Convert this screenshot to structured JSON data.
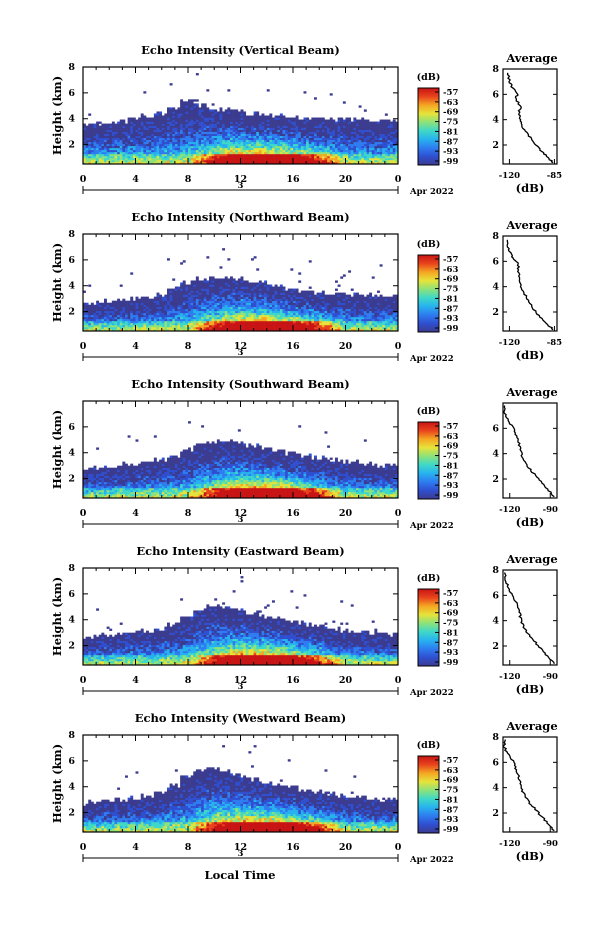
{
  "colors": {
    "colormap": [
      "#3b3b8f",
      "#2f4fd0",
      "#2e7cf0",
      "#27b2ee",
      "#3fd8c8",
      "#8de27a",
      "#e6e33a",
      "#f5a623",
      "#e8431c",
      "#c81414"
    ],
    "axis": "#000000"
  },
  "common": {
    "xlabel": "Local Time",
    "date_label": "Apr 2022",
    "day_label": "3",
    "colorbar_unit": "(dB)",
    "colorbar_ticks": [
      "-57",
      "-63",
      "-69",
      "-75",
      "-81",
      "-87",
      "-93",
      "-99"
    ],
    "avg_title": "Average",
    "avg_xlabel": "(dB)"
  },
  "chart_data": [
    {
      "type": "heatmap",
      "title": "Echo Intensity (Vertical Beam)",
      "ylabel": "Height (km)",
      "x_ticks": [
        "0",
        "4",
        "8",
        "12",
        "16",
        "20",
        "0"
      ],
      "y_ticks": [
        "8",
        "6",
        "4",
        "2"
      ],
      "xlim": [
        0,
        24
      ],
      "ylim": [
        0.5,
        8
      ],
      "echo_top_km": [
        3.6,
        3.6,
        3.7,
        3.8,
        4.0,
        4.2,
        4.5,
        4.9,
        5.4,
        5.1,
        4.7,
        4.7,
        4.6,
        4.4,
        4.3,
        4.2,
        4.1,
        4.1,
        4.0,
        4.0,
        4.0,
        4.0,
        3.9,
        3.9,
        3.8
      ],
      "avg_profile": {
        "title": "Average",
        "xlabel": "(dB)",
        "x_ticks": [
          "-120",
          "-85"
        ],
        "y_ticks": [
          "8",
          "6",
          "4",
          "2"
        ],
        "xlim": [
          -125,
          -83
        ],
        "ylim": [
          0.5,
          8
        ],
        "height_km": [
          7.7,
          7.0,
          6.6,
          6.0,
          5.6,
          5.0,
          4.5,
          4.0,
          3.5,
          3.0,
          2.5,
          2.0,
          1.5,
          1.0,
          0.6
        ],
        "db": [
          -121,
          -120,
          -118,
          -114,
          -115,
          -111,
          -113,
          -111,
          -110,
          -107,
          -103,
          -99,
          -95,
          -90,
          -86
        ]
      }
    },
    {
      "type": "heatmap",
      "title": "Echo Intensity (Northward Beam)",
      "ylabel": "Height (km)",
      "x_ticks": [
        "0",
        "4",
        "8",
        "12",
        "16",
        "20",
        "0"
      ],
      "y_ticks": [
        "8",
        "6",
        "4",
        "2"
      ],
      "xlim": [
        0,
        24
      ],
      "ylim": [
        0.5,
        8
      ],
      "echo_top_km": [
        2.6,
        2.7,
        2.8,
        2.9,
        3.0,
        3.1,
        3.3,
        3.8,
        4.3,
        4.5,
        4.6,
        4.7,
        4.6,
        4.3,
        4.2,
        4.0,
        3.8,
        3.6,
        3.5,
        3.4,
        3.4,
        3.3,
        3.3,
        3.2,
        3.2
      ],
      "avg_profile": {
        "title": "Average",
        "xlabel": "(dB)",
        "x_ticks": [
          "-120",
          "-85"
        ],
        "y_ticks": [
          "8",
          "6",
          "4",
          "2"
        ],
        "xlim": [
          -125,
          -83
        ],
        "ylim": [
          0.5,
          8
        ],
        "height_km": [
          7.7,
          7.0,
          6.6,
          6.2,
          5.8,
          5.2,
          4.6,
          4.0,
          3.4,
          2.8,
          2.2,
          1.6,
          1.0,
          0.6
        ],
        "db": [
          -121,
          -121,
          -119,
          -117,
          -113,
          -113,
          -112,
          -111,
          -108,
          -105,
          -101,
          -96,
          -90,
          -86
        ]
      }
    },
    {
      "type": "heatmap",
      "title": "Echo Intensity (Southward Beam)",
      "ylabel": "Height (km)",
      "x_ticks": [
        "0",
        "4",
        "8",
        "12",
        "16",
        "20",
        "0"
      ],
      "y_ticks": [
        "6",
        "4",
        "2"
      ],
      "xlim": [
        0,
        24
      ],
      "ylim": [
        0.5,
        8
      ],
      "echo_top_km": [
        2.7,
        2.8,
        2.9,
        3.0,
        3.1,
        3.2,
        3.4,
        3.7,
        4.2,
        4.6,
        4.8,
        4.9,
        4.8,
        4.6,
        4.4,
        4.2,
        4.0,
        3.8,
        3.6,
        3.4,
        3.3,
        3.2,
        3.1,
        3.0,
        3.0
      ],
      "avg_profile": {
        "title": "Average",
        "xlabel": "(dB)",
        "x_ticks": [
          "-120",
          "-90"
        ],
        "y_ticks": [
          "6",
          "4",
          "2"
        ],
        "xlim": [
          -125,
          -85
        ],
        "ylim": [
          0.5,
          8
        ],
        "height_km": [
          7.8,
          7.2,
          6.6,
          6.0,
          5.4,
          4.8,
          4.2,
          3.6,
          3.0,
          2.4,
          1.8,
          1.2,
          0.6
        ],
        "db": [
          -124,
          -124,
          -121,
          -117,
          -115,
          -113,
          -112,
          -110,
          -107,
          -102,
          -97,
          -92,
          -87
        ]
      }
    },
    {
      "type": "heatmap",
      "title": "Echo Intensity (Eastward Beam)",
      "ylabel": "Height (km)",
      "x_ticks": [
        "0",
        "4",
        "8",
        "12",
        "16",
        "20",
        "0"
      ],
      "y_ticks": [
        "8",
        "6",
        "4",
        "2"
      ],
      "xlim": [
        0,
        24
      ],
      "ylim": [
        0.5,
        8
      ],
      "echo_top_km": [
        2.6,
        2.7,
        2.8,
        2.9,
        3.0,
        3.1,
        3.3,
        3.7,
        4.3,
        4.8,
        5.1,
        5.0,
        4.8,
        4.5,
        4.3,
        4.1,
        3.9,
        3.7,
        3.5,
        3.3,
        3.2,
        3.1,
        3.0,
        3.0,
        2.9
      ],
      "avg_profile": {
        "title": "Average",
        "xlabel": "(dB)",
        "x_ticks": [
          "-120",
          "-90"
        ],
        "y_ticks": [
          "8",
          "6",
          "4",
          "2"
        ],
        "xlim": [
          -125,
          -85
        ],
        "ylim": [
          0.5,
          8
        ],
        "height_km": [
          7.8,
          7.2,
          6.6,
          6.0,
          5.4,
          4.8,
          4.2,
          3.6,
          3.0,
          2.4,
          1.8,
          1.2,
          0.6
        ],
        "db": [
          -123,
          -123,
          -121,
          -118,
          -115,
          -113,
          -112,
          -110,
          -107,
          -102,
          -97,
          -92,
          -87
        ]
      }
    },
    {
      "type": "heatmap",
      "title": "Echo Intensity (Westward Beam)",
      "ylabel": "Height (km)",
      "x_ticks": [
        "0",
        "4",
        "8",
        "12",
        "16",
        "20",
        "0"
      ],
      "y_ticks": [
        "8",
        "6",
        "4",
        "2"
      ],
      "xlim": [
        0,
        24
      ],
      "ylim": [
        0.5,
        8
      ],
      "echo_top_km": [
        2.7,
        2.8,
        2.9,
        3.0,
        3.1,
        3.3,
        3.6,
        4.1,
        4.8,
        5.3,
        5.4,
        5.2,
        4.9,
        4.6,
        4.4,
        4.2,
        4.0,
        3.8,
        3.6,
        3.4,
        3.3,
        3.2,
        3.1,
        3.0,
        3.0
      ],
      "avg_profile": {
        "title": "Average",
        "xlabel": "(dB)",
        "x_ticks": [
          "-120",
          "-90"
        ],
        "y_ticks": [
          "8",
          "6",
          "4",
          "2"
        ],
        "xlim": [
          -125,
          -85
        ],
        "ylim": [
          0.5,
          8
        ],
        "height_km": [
          7.8,
          7.2,
          6.6,
          6.0,
          5.4,
          4.8,
          4.2,
          3.6,
          3.0,
          2.4,
          1.8,
          1.2,
          0.6
        ],
        "db": [
          -124,
          -124,
          -121,
          -117,
          -115,
          -113,
          -112,
          -110,
          -107,
          -102,
          -97,
          -92,
          -87
        ]
      }
    }
  ]
}
